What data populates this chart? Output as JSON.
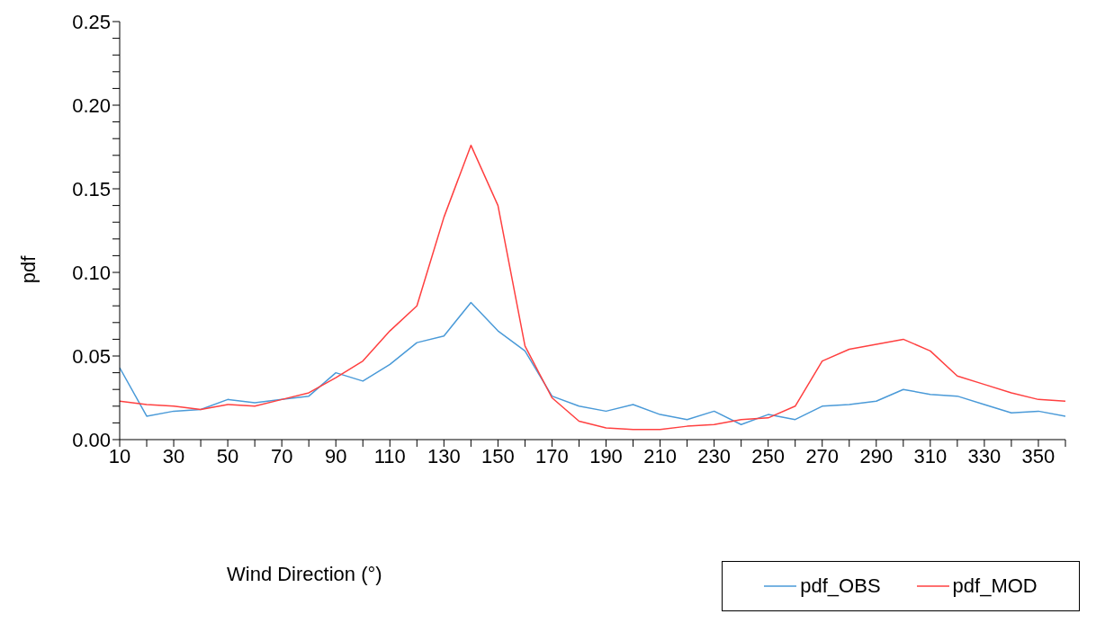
{
  "chart_data": {
    "type": "line",
    "xlabel": "Wind Direction (°)",
    "ylabel": "pdf",
    "x": [
      10,
      20,
      30,
      40,
      50,
      60,
      70,
      80,
      90,
      100,
      110,
      120,
      130,
      140,
      150,
      160,
      170,
      180,
      190,
      200,
      210,
      220,
      230,
      240,
      250,
      260,
      270,
      280,
      290,
      300,
      310,
      320,
      330,
      340,
      350,
      360
    ],
    "series": [
      {
        "name": "pdf_OBS",
        "color": "#4a9ad8",
        "values": [
          0.043,
          0.014,
          0.017,
          0.018,
          0.024,
          0.022,
          0.024,
          0.026,
          0.04,
          0.035,
          0.045,
          0.058,
          0.062,
          0.082,
          0.065,
          0.053,
          0.026,
          0.02,
          0.017,
          0.021,
          0.015,
          0.012,
          0.017,
          0.009,
          0.015,
          0.012,
          0.02,
          0.021,
          0.023,
          0.03,
          0.027,
          0.026,
          0.021,
          0.016,
          0.017,
          0.014
        ]
      },
      {
        "name": "pdf_MOD",
        "color": "#ff4040",
        "values": [
          0.023,
          0.021,
          0.02,
          0.018,
          0.021,
          0.02,
          0.024,
          0.028,
          0.037,
          0.047,
          0.065,
          0.08,
          0.133,
          0.176,
          0.14,
          0.056,
          0.025,
          0.011,
          0.007,
          0.006,
          0.006,
          0.008,
          0.009,
          0.012,
          0.013,
          0.02,
          0.047,
          0.054,
          0.057,
          0.06,
          0.053,
          0.038,
          0.033,
          0.028,
          0.024,
          0.023
        ]
      }
    ],
    "xlim": [
      10,
      360
    ],
    "xticks": [
      10,
      {
        "value": 20,
        "label": null
      },
      30,
      {
        "value": 40,
        "label": null
      },
      50,
      {
        "value": 60,
        "label": null
      },
      70,
      {
        "value": 80,
        "label": null
      },
      90,
      {
        "value": 100,
        "label": null
      },
      110,
      {
        "value": 120,
        "label": null
      },
      130,
      {
        "value": 140,
        "label": null
      },
      150,
      {
        "value": 160,
        "label": null
      },
      170,
      {
        "value": 180,
        "label": null
      },
      190,
      {
        "value": 200,
        "label": null
      },
      210,
      {
        "value": 220,
        "label": null
      },
      230,
      {
        "value": 240,
        "label": null
      },
      250,
      {
        "value": 260,
        "label": null
      },
      270,
      {
        "value": 280,
        "label": null
      },
      290,
      {
        "value": 300,
        "label": null
      },
      310,
      {
        "value": 320,
        "label": null
      },
      330,
      {
        "value": 340,
        "label": null
      },
      350,
      {
        "value": 360,
        "label": null
      }
    ],
    "ylim": [
      0,
      0.25
    ],
    "yticks": [
      {
        "value": 0,
        "label": "0.00"
      },
      {
        "value": 0.01,
        "label": null
      },
      {
        "value": 0.02,
        "label": null
      },
      {
        "value": 0.03,
        "label": null
      },
      {
        "value": 0.04,
        "label": null
      },
      {
        "value": 0.05,
        "label": "0.05"
      },
      {
        "value": 0.06,
        "label": null
      },
      {
        "value": 0.07,
        "label": null
      },
      {
        "value": 0.08,
        "label": null
      },
      {
        "value": 0.09,
        "label": null
      },
      {
        "value": 0.1,
        "label": "0.10"
      },
      {
        "value": 0.11,
        "label": null
      },
      {
        "value": 0.12,
        "label": null
      },
      {
        "value": 0.13,
        "label": null
      },
      {
        "value": 0.14,
        "label": null
      },
      {
        "value": 0.15,
        "label": "0.15"
      },
      {
        "value": 0.16,
        "label": null
      },
      {
        "value": 0.17,
        "label": null
      },
      {
        "value": 0.18,
        "label": null
      },
      {
        "value": 0.19,
        "label": null
      },
      {
        "value": 0.2,
        "label": "0.20"
      },
      {
        "value": 0.21,
        "label": null
      },
      {
        "value": 0.22,
        "label": null
      },
      {
        "value": 0.23,
        "label": null
      },
      {
        "value": 0.24,
        "label": null
      },
      {
        "value": 0.25,
        "label": "0.25"
      }
    ],
    "grid": false,
    "legend": "bottom right",
    "marker": "none",
    "line_style": "solid"
  }
}
